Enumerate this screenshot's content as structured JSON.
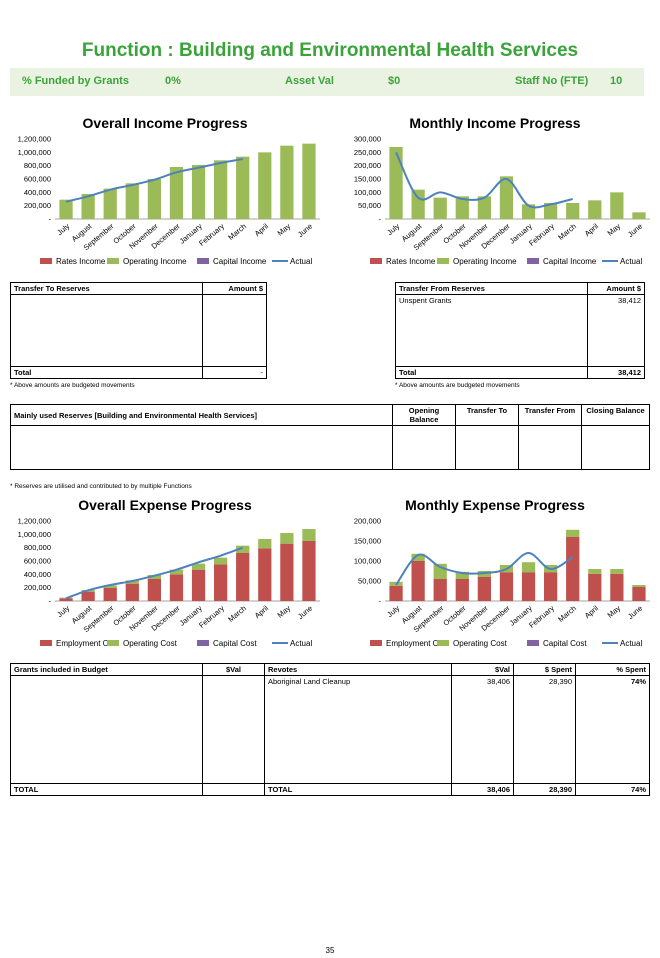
{
  "title": "Function : Building and Environmental Health Services",
  "summary": {
    "funded_label": "% Funded by Grants",
    "funded_value": "0%",
    "asset_label": "Asset Val",
    "asset_value": "$0",
    "staff_label": "Staff No (FTE)",
    "staff_value": "10"
  },
  "chart_data": [
    {
      "type": "bar",
      "title": "Overall Income Progress",
      "categories": [
        "July",
        "August",
        "September",
        "October",
        "November",
        "December",
        "January",
        "February",
        "March",
        "April",
        "May",
        "June"
      ],
      "series": [
        {
          "name": "Rates Income",
          "values": [
            0,
            0,
            0,
            0,
            0,
            0,
            0,
            0,
            0,
            0,
            0,
            0
          ]
        },
        {
          "name": "Operating Income",
          "values": [
            290000,
            375000,
            455000,
            535000,
            600000,
            780000,
            810000,
            880000,
            935000,
            1000000,
            1100000,
            1130000
          ]
        },
        {
          "name": "Capital Income",
          "values": [
            0,
            0,
            0,
            0,
            0,
            0,
            0,
            0,
            0,
            0,
            0,
            0
          ]
        },
        {
          "name": "Actual",
          "line": true,
          "values": [
            260000,
            340000,
            440000,
            510000,
            590000,
            700000,
            770000,
            840000,
            900000,
            null,
            null,
            null
          ]
        }
      ],
      "yticks": [
        "-",
        "200,000",
        "400,000",
        "600,000",
        "800,000",
        "1,000,000",
        "1,200,000"
      ],
      "ylim": [
        0,
        1200000
      ]
    },
    {
      "type": "bar",
      "title": "Monthly Income Progress",
      "categories": [
        "July",
        "August",
        "September",
        "October",
        "November",
        "December",
        "January",
        "February",
        "March",
        "April",
        "May",
        "June"
      ],
      "series": [
        {
          "name": "Rates Income",
          "values": [
            0,
            0,
            0,
            0,
            0,
            0,
            0,
            0,
            0,
            0,
            0,
            0
          ]
        },
        {
          "name": "Operating Income",
          "values": [
            270000,
            110000,
            80000,
            85000,
            85000,
            160000,
            55000,
            60000,
            60000,
            70000,
            100000,
            25000
          ]
        },
        {
          "name": "Capital Income",
          "values": [
            0,
            0,
            0,
            0,
            0,
            0,
            0,
            0,
            0,
            0,
            0,
            0
          ]
        },
        {
          "name": "Actual",
          "line": true,
          "values": [
            250000,
            80000,
            100000,
            75000,
            80000,
            150000,
            50000,
            55000,
            75000,
            null,
            null,
            null
          ]
        }
      ],
      "yticks": [
        "-",
        "50,000",
        "100,000",
        "150,000",
        "200,000",
        "250,000",
        "300,000"
      ],
      "ylim": [
        0,
        300000
      ]
    },
    {
      "type": "bar",
      "title": "Overall Expense Progress",
      "categories": [
        "July",
        "August",
        "September",
        "October",
        "November",
        "December",
        "January",
        "February",
        "March",
        "April",
        "May",
        "June"
      ],
      "series": [
        {
          "name": "Employment Cost",
          "values": [
            40000,
            140000,
            195000,
            260000,
            330000,
            400000,
            470000,
            550000,
            720000,
            790000,
            860000,
            900000
          ]
        },
        {
          "name": "Operating Cost",
          "values": [
            10000,
            25000,
            40000,
            50000,
            60000,
            70000,
            90000,
            100000,
            110000,
            140000,
            160000,
            180000
          ]
        },
        {
          "name": "Capital Cost",
          "values": [
            0,
            0,
            0,
            0,
            0,
            0,
            0,
            0,
            0,
            0,
            0,
            0
          ]
        },
        {
          "name": "Actual",
          "line": true,
          "values": [
            40000,
            160000,
            240000,
            300000,
            380000,
            470000,
            580000,
            680000,
            800000,
            null,
            null,
            null
          ]
        }
      ],
      "yticks": [
        "-",
        "200,000",
        "400,000",
        "600,000",
        "800,000",
        "1,000,000",
        "1,200,000"
      ],
      "ylim": [
        0,
        1200000
      ]
    },
    {
      "type": "bar",
      "title": "Monthly Expense Progress",
      "categories": [
        "July",
        "August",
        "September",
        "October",
        "November",
        "December",
        "January",
        "February",
        "March",
        "April",
        "May",
        "June"
      ],
      "series": [
        {
          "name": "Employment Cost",
          "values": [
            38000,
            100000,
            55000,
            55000,
            60000,
            72000,
            72000,
            72000,
            160000,
            68000,
            68000,
            35000
          ]
        },
        {
          "name": "Operating Cost",
          "values": [
            10000,
            18000,
            38000,
            18000,
            15000,
            18000,
            25000,
            18000,
            18000,
            12000,
            12000,
            5000
          ]
        },
        {
          "name": "Capital Cost",
          "values": [
            0,
            0,
            0,
            0,
            0,
            0,
            0,
            0,
            0,
            0,
            0,
            0
          ]
        },
        {
          "name": "Actual",
          "line": true,
          "values": [
            40000,
            115000,
            85000,
            70000,
            70000,
            80000,
            120000,
            80000,
            110000,
            null,
            null,
            null
          ]
        }
      ],
      "yticks": [
        "-",
        "50,000",
        "100,000",
        "150,000",
        "200,000"
      ],
      "ylim": [
        0,
        200000
      ]
    }
  ],
  "colors": {
    "rates": "#c0504d",
    "operating": "#9bbb59",
    "capital": "#8064a2",
    "actual": "#4f81bd"
  },
  "transfer_to": {
    "header_left": "Transfer To Reserves",
    "header_right": "Amount $",
    "total_label": "Total",
    "total_value": "-",
    "note": "* Above amounts are budgeted movements"
  },
  "transfer_from": {
    "header_left": "Transfer From Reserves",
    "header_right": "Amount $",
    "row_label": "Unspent Grants",
    "row_value": "38,412",
    "total_label": "Total",
    "total_value": "38,412",
    "note": "* Above amounts are budgeted movements"
  },
  "reserves": {
    "header": "Mainly used Reserves [Building and Environmental Health Services]",
    "col1": "Opening Balance",
    "col2": "Transfer To",
    "col3": "Transfer From",
    "col4": "Closing Balance",
    "note": "* Reserves are utilised and contributed to by multiple Functions"
  },
  "grants": {
    "header_left": "Grants included in Budget",
    "header_val": "$Val",
    "total_label": "TOTAL"
  },
  "revotes": {
    "header": "Revotes",
    "col_val": "$Val",
    "col_spent": "$ Spent",
    "col_pct": "% Spent",
    "row_label": "Aboriginal Land Cleanup",
    "row_val": "38,406",
    "row_spent": "28,390",
    "row_pct": "74%",
    "total_label": "TOTAL",
    "total_val": "38,406",
    "total_spent": "28,390",
    "total_pct": "74%"
  },
  "page_number": "35"
}
